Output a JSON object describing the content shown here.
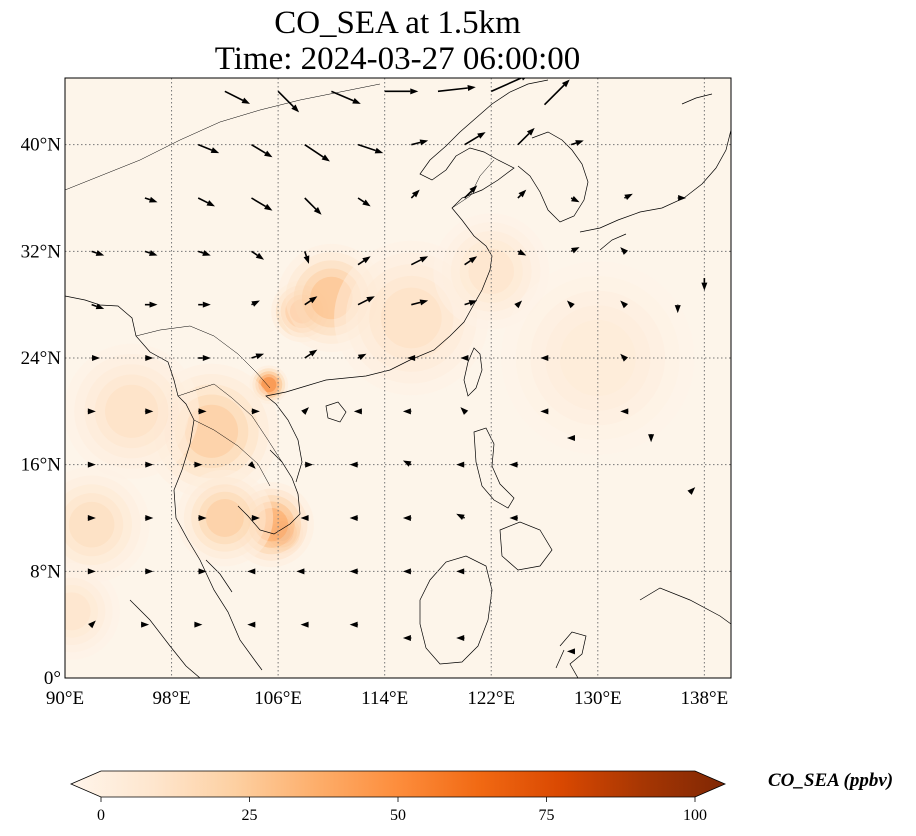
{
  "title_line1": "CO_SEA at 1.5km",
  "title_line2": "Time: 2024-03-27 06:00:00",
  "map": {
    "extent": {
      "lon": [
        90,
        140
      ],
      "lat": [
        0,
        45
      ]
    },
    "lon_ticks": [
      90,
      98,
      106,
      114,
      122,
      130,
      138
    ],
    "lon_tick_labels": [
      "90°E",
      "98°E",
      "106°E",
      "114°E",
      "122°E",
      "130°E",
      "138°E"
    ],
    "lat_ticks": [
      0,
      8,
      16,
      24,
      32,
      40
    ],
    "lat_tick_labels": [
      "0°",
      "8°N",
      "16°N",
      "24°N",
      "32°N",
      "40°N"
    ],
    "gridlines": true,
    "field_hotspots": [
      {
        "lon": 106.3,
        "lat": 10.9,
        "value": 100,
        "spread": 1.1
      },
      {
        "lon": 105.5,
        "lat": 11.5,
        "value": 45,
        "spread": 2.2
      },
      {
        "lon": 105.3,
        "lat": 22.0,
        "value": 60,
        "spread": 1.0
      },
      {
        "lon": 107.8,
        "lat": 27.5,
        "value": 55,
        "spread": 1.6
      },
      {
        "lon": 110.0,
        "lat": 28.5,
        "value": 35,
        "spread": 2.8
      },
      {
        "lon": 101.0,
        "lat": 18.5,
        "value": 30,
        "spread": 3.5
      },
      {
        "lon": 102.0,
        "lat": 12.0,
        "value": 30,
        "spread": 2.5
      },
      {
        "lon": 92.0,
        "lat": 11.5,
        "value": 20,
        "spread": 3.0
      },
      {
        "lon": 95.0,
        "lat": 20.0,
        "value": 18,
        "spread": 3.5
      },
      {
        "lon": 116.0,
        "lat": 27.0,
        "value": 18,
        "spread": 4.0
      },
      {
        "lon": 122.0,
        "lat": 30.5,
        "value": 15,
        "spread": 3.0
      },
      {
        "lon": 130.0,
        "lat": 24.0,
        "value": 10,
        "spread": 5.0
      },
      {
        "lon": 90.5,
        "lat": 5.0,
        "value": 15,
        "spread": 2.5
      }
    ],
    "wind_vectors": [
      {
        "lon": 102,
        "lat": 44,
        "u": 6,
        "v": -3
      },
      {
        "lon": 106,
        "lat": 44,
        "u": 5,
        "v": -5
      },
      {
        "lon": 110,
        "lat": 44,
        "u": 7,
        "v": -3
      },
      {
        "lon": 114,
        "lat": 44,
        "u": 8,
        "v": 0
      },
      {
        "lon": 118,
        "lat": 44,
        "u": 9,
        "v": 1
      },
      {
        "lon": 122,
        "lat": 44,
        "u": 9,
        "v": 4
      },
      {
        "lon": 126,
        "lat": 43,
        "u": 6,
        "v": 6
      },
      {
        "lon": 100,
        "lat": 40,
        "u": 5,
        "v": -2
      },
      {
        "lon": 104,
        "lat": 40,
        "u": 5,
        "v": -3
      },
      {
        "lon": 108,
        "lat": 40,
        "u": 6,
        "v": -4
      },
      {
        "lon": 112,
        "lat": 40,
        "u": 6,
        "v": -2
      },
      {
        "lon": 116,
        "lat": 40,
        "u": 4,
        "v": 1
      },
      {
        "lon": 120,
        "lat": 40,
        "u": 5,
        "v": 3
      },
      {
        "lon": 124,
        "lat": 40,
        "u": 4,
        "v": 4
      },
      {
        "lon": 128,
        "lat": 40,
        "u": 3,
        "v": 1
      },
      {
        "lon": 96,
        "lat": 36,
        "u": 3,
        "v": -1
      },
      {
        "lon": 100,
        "lat": 36,
        "u": 4,
        "v": -2
      },
      {
        "lon": 104,
        "lat": 36,
        "u": 5,
        "v": -3
      },
      {
        "lon": 108,
        "lat": 36,
        "u": 4,
        "v": -4
      },
      {
        "lon": 112,
        "lat": 36,
        "u": 3,
        "v": -2
      },
      {
        "lon": 116,
        "lat": 36,
        "u": 2,
        "v": 2
      },
      {
        "lon": 120,
        "lat": 36,
        "u": 3,
        "v": 3
      },
      {
        "lon": 124,
        "lat": 36,
        "u": 2,
        "v": 2
      },
      {
        "lon": 128,
        "lat": 36,
        "u": 2,
        "v": -1
      },
      {
        "lon": 132,
        "lat": 36,
        "u": 2,
        "v": 1
      },
      {
        "lon": 136,
        "lat": 36,
        "u": 2,
        "v": 0
      },
      {
        "lon": 92,
        "lat": 32,
        "u": 3,
        "v": -1
      },
      {
        "lon": 96,
        "lat": 32,
        "u": 3,
        "v": -1
      },
      {
        "lon": 100,
        "lat": 32,
        "u": 3,
        "v": -1
      },
      {
        "lon": 104,
        "lat": 32,
        "u": 3,
        "v": -2
      },
      {
        "lon": 108,
        "lat": 32,
        "u": 1,
        "v": -3
      },
      {
        "lon": 112,
        "lat": 31,
        "u": 3,
        "v": 2
      },
      {
        "lon": 116,
        "lat": 31,
        "u": 4,
        "v": 2
      },
      {
        "lon": 120,
        "lat": 31,
        "u": 3,
        "v": 2
      },
      {
        "lon": 124,
        "lat": 32,
        "u": 2,
        "v": -1
      },
      {
        "lon": 128,
        "lat": 32,
        "u": 2,
        "v": 1
      },
      {
        "lon": 132,
        "lat": 32,
        "u": -1,
        "v": 1
      },
      {
        "lon": 138,
        "lat": 30,
        "u": 0,
        "v": -3
      },
      {
        "lon": 92,
        "lat": 28,
        "u": 3,
        "v": -1
      },
      {
        "lon": 96,
        "lat": 28,
        "u": 3,
        "v": 0
      },
      {
        "lon": 100,
        "lat": 28,
        "u": 3,
        "v": 0
      },
      {
        "lon": 104,
        "lat": 28,
        "u": 2,
        "v": 1
      },
      {
        "lon": 108,
        "lat": 28,
        "u": 3,
        "v": 2
      },
      {
        "lon": 112,
        "lat": 28,
        "u": 4,
        "v": 2
      },
      {
        "lon": 116,
        "lat": 28,
        "u": 4,
        "v": 1
      },
      {
        "lon": 120,
        "lat": 28,
        "u": 3,
        "v": 1
      },
      {
        "lon": 124,
        "lat": 28,
        "u": 1,
        "v": 1
      },
      {
        "lon": 128,
        "lat": 28,
        "u": -1,
        "v": 1
      },
      {
        "lon": 132,
        "lat": 28,
        "u": -1,
        "v": 1
      },
      {
        "lon": 136,
        "lat": 28,
        "u": 0,
        "v": -2
      },
      {
        "lon": 92,
        "lat": 24,
        "u": 2,
        "v": 0
      },
      {
        "lon": 96,
        "lat": 24,
        "u": 2,
        "v": 0
      },
      {
        "lon": 100,
        "lat": 24,
        "u": 3,
        "v": 0
      },
      {
        "lon": 104,
        "lat": 24,
        "u": 3,
        "v": 1
      },
      {
        "lon": 108,
        "lat": 24,
        "u": 3,
        "v": 2
      },
      {
        "lon": 112,
        "lat": 24,
        "u": 2,
        "v": 1
      },
      {
        "lon": 116,
        "lat": 24,
        "u": -1,
        "v": 0
      },
      {
        "lon": 120,
        "lat": 24,
        "u": -1,
        "v": 0
      },
      {
        "lon": 126,
        "lat": 24,
        "u": -1,
        "v": 0
      },
      {
        "lon": 132,
        "lat": 24,
        "u": -1,
        "v": 1
      },
      {
        "lon": 92,
        "lat": 20,
        "u": 1,
        "v": 0
      },
      {
        "lon": 96,
        "lat": 20,
        "u": 2,
        "v": 0
      },
      {
        "lon": 100,
        "lat": 20,
        "u": 2,
        "v": 0
      },
      {
        "lon": 104,
        "lat": 20,
        "u": 2,
        "v": 0
      },
      {
        "lon": 108,
        "lat": 20,
        "u": 1,
        "v": 1
      },
      {
        "lon": 112,
        "lat": 20,
        "u": -1,
        "v": 0
      },
      {
        "lon": 116,
        "lat": 20,
        "u": -2,
        "v": 0
      },
      {
        "lon": 120,
        "lat": 20,
        "u": -1,
        "v": 1
      },
      {
        "lon": 126,
        "lat": 20,
        "u": -1,
        "v": 0
      },
      {
        "lon": 132,
        "lat": 20,
        "u": -1,
        "v": 0
      },
      {
        "lon": 92,
        "lat": 16,
        "u": 1,
        "v": 0
      },
      {
        "lon": 96,
        "lat": 16,
        "u": 2,
        "v": 0
      },
      {
        "lon": 100,
        "lat": 16,
        "u": 1,
        "v": 0
      },
      {
        "lon": 104,
        "lat": 16,
        "u": 1,
        "v": -1
      },
      {
        "lon": 108,
        "lat": 16,
        "u": 2,
        "v": 0
      },
      {
        "lon": 112,
        "lat": 16,
        "u": -2,
        "v": 0
      },
      {
        "lon": 116,
        "lat": 16,
        "u": -2,
        "v": 1
      },
      {
        "lon": 120,
        "lat": 16,
        "u": -2,
        "v": 0
      },
      {
        "lon": 124,
        "lat": 16,
        "u": -2,
        "v": 0
      },
      {
        "lon": 128,
        "lat": 18,
        "u": -1,
        "v": 0
      },
      {
        "lon": 134,
        "lat": 18,
        "u": 0,
        "v": -1
      },
      {
        "lon": 137,
        "lat": 14,
        "u": 1,
        "v": 1
      },
      {
        "lon": 92,
        "lat": 12,
        "u": 1,
        "v": 0
      },
      {
        "lon": 96,
        "lat": 12,
        "u": 2,
        "v": 0
      },
      {
        "lon": 100,
        "lat": 12,
        "u": 2,
        "v": 0
      },
      {
        "lon": 104,
        "lat": 12,
        "u": 2,
        "v": 0
      },
      {
        "lon": 108,
        "lat": 12,
        "u": -1,
        "v": 0
      },
      {
        "lon": 112,
        "lat": 12,
        "u": -2,
        "v": 0
      },
      {
        "lon": 116,
        "lat": 12,
        "u": -2,
        "v": 0
      },
      {
        "lon": 120,
        "lat": 12,
        "u": -2,
        "v": 1
      },
      {
        "lon": 124,
        "lat": 12,
        "u": -2,
        "v": 0
      },
      {
        "lon": 92,
        "lat": 8,
        "u": 1,
        "v": 0
      },
      {
        "lon": 96,
        "lat": 8,
        "u": 2,
        "v": 0
      },
      {
        "lon": 100,
        "lat": 8,
        "u": 2,
        "v": 0
      },
      {
        "lon": 104,
        "lat": 8,
        "u": -1,
        "v": 0
      },
      {
        "lon": 108,
        "lat": 8,
        "u": -2,
        "v": 0
      },
      {
        "lon": 112,
        "lat": 8,
        "u": -2,
        "v": 0
      },
      {
        "lon": 116,
        "lat": 8,
        "u": -2,
        "v": 0
      },
      {
        "lon": 120,
        "lat": 8,
        "u": -2,
        "v": 0
      },
      {
        "lon": 92,
        "lat": 4,
        "u": 1,
        "v": 1
      },
      {
        "lon": 96,
        "lat": 4,
        "u": 1,
        "v": 0
      },
      {
        "lon": 100,
        "lat": 4,
        "u": 1,
        "v": 0
      },
      {
        "lon": 104,
        "lat": 4,
        "u": -1,
        "v": 0
      },
      {
        "lon": 108,
        "lat": 4,
        "u": -1,
        "v": 0
      },
      {
        "lon": 112,
        "lat": 4,
        "u": -2,
        "v": 0
      },
      {
        "lon": 116,
        "lat": 3,
        "u": -2,
        "v": 0
      },
      {
        "lon": 120,
        "lat": 3,
        "u": -2,
        "v": 0
      },
      {
        "lon": 128,
        "lat": 2,
        "u": -1,
        "v": 0
      }
    ]
  },
  "colorbar": {
    "label": "CO_SEA (ppbv)",
    "min": 0,
    "max": 100,
    "ticks": [
      0,
      25,
      50,
      75,
      100
    ],
    "tick_labels": [
      "0",
      "25",
      "50",
      "75",
      "100"
    ],
    "colors": [
      "#fff5eb",
      "#fee6ce",
      "#fdd0a2",
      "#fdae6b",
      "#fd8d3c",
      "#f16913",
      "#d94801",
      "#a63603",
      "#7f2704"
    ],
    "extend": "both"
  }
}
